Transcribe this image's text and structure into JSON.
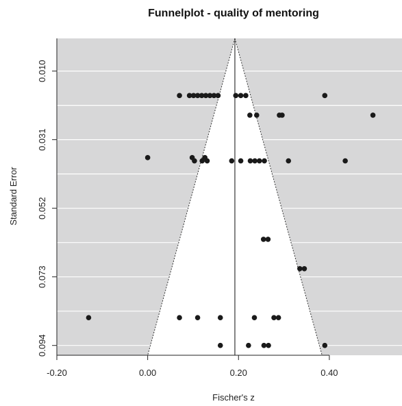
{
  "chart_data": {
    "type": "scatter",
    "title": "Funnelplot - quality of mentoring",
    "xlabel": "Fischer's z",
    "ylabel": "Standard Error",
    "xlim": [
      -0.2,
      0.56
    ],
    "ylim": [
      0.0,
      0.097
    ],
    "y_reversed": true,
    "x_ticks": [
      -0.2,
      0.0,
      0.2,
      0.4
    ],
    "x_tick_labels": [
      "-0.20",
      "0.00",
      "0.20",
      "0.40"
    ],
    "y_ticks": [
      0.01,
      0.031,
      0.052,
      0.073,
      0.094
    ],
    "y_tick_labels": [
      "0.010",
      "0.031",
      "0.052",
      "0.073",
      "0.094"
    ],
    "grid": true,
    "summary_estimate": 0.192,
    "funnel": {
      "apex_se": 0.0,
      "left_at_max": 0.0,
      "right_at_max": 0.384,
      "max_se": 0.097
    },
    "colors": {
      "panel": "#d7d7d8",
      "funnel_fill": "#ffffff",
      "points": "#1a1a1a",
      "grid": "#ffffff"
    },
    "points": [
      {
        "x": 0.07,
        "y": 0.0175
      },
      {
        "x": 0.092,
        "y": 0.0175
      },
      {
        "x": 0.101,
        "y": 0.0175
      },
      {
        "x": 0.11,
        "y": 0.0175
      },
      {
        "x": 0.119,
        "y": 0.0175
      },
      {
        "x": 0.128,
        "y": 0.0175
      },
      {
        "x": 0.137,
        "y": 0.0175
      },
      {
        "x": 0.146,
        "y": 0.0175
      },
      {
        "x": 0.155,
        "y": 0.0175
      },
      {
        "x": 0.194,
        "y": 0.0175
      },
      {
        "x": 0.205,
        "y": 0.0175
      },
      {
        "x": 0.216,
        "y": 0.0175
      },
      {
        "x": 0.39,
        "y": 0.0175
      },
      {
        "x": 0.225,
        "y": 0.0235
      },
      {
        "x": 0.24,
        "y": 0.0235
      },
      {
        "x": 0.29,
        "y": 0.0235
      },
      {
        "x": 0.296,
        "y": 0.0235
      },
      {
        "x": 0.496,
        "y": 0.0235
      },
      {
        "x": 0.0,
        "y": 0.0365
      },
      {
        "x": 0.098,
        "y": 0.0365
      },
      {
        "x": 0.103,
        "y": 0.0375
      },
      {
        "x": 0.12,
        "y": 0.0375
      },
      {
        "x": 0.126,
        "y": 0.0365
      },
      {
        "x": 0.131,
        "y": 0.0375
      },
      {
        "x": 0.185,
        "y": 0.0375
      },
      {
        "x": 0.205,
        "y": 0.0375
      },
      {
        "x": 0.226,
        "y": 0.0375
      },
      {
        "x": 0.236,
        "y": 0.0375
      },
      {
        "x": 0.246,
        "y": 0.0375
      },
      {
        "x": 0.257,
        "y": 0.0375
      },
      {
        "x": 0.31,
        "y": 0.0375
      },
      {
        "x": 0.435,
        "y": 0.0375
      },
      {
        "x": 0.255,
        "y": 0.0615
      },
      {
        "x": 0.265,
        "y": 0.0615
      },
      {
        "x": 0.335,
        "y": 0.0705
      },
      {
        "x": 0.345,
        "y": 0.0705
      },
      {
        "x": -0.13,
        "y": 0.0855
      },
      {
        "x": 0.07,
        "y": 0.0855
      },
      {
        "x": 0.11,
        "y": 0.0855
      },
      {
        "x": 0.16,
        "y": 0.0855
      },
      {
        "x": 0.235,
        "y": 0.0855
      },
      {
        "x": 0.278,
        "y": 0.0855
      },
      {
        "x": 0.288,
        "y": 0.0855
      },
      {
        "x": 0.16,
        "y": 0.094
      },
      {
        "x": 0.222,
        "y": 0.094
      },
      {
        "x": 0.256,
        "y": 0.094
      },
      {
        "x": 0.266,
        "y": 0.094
      },
      {
        "x": 0.39,
        "y": 0.094
      }
    ]
  }
}
